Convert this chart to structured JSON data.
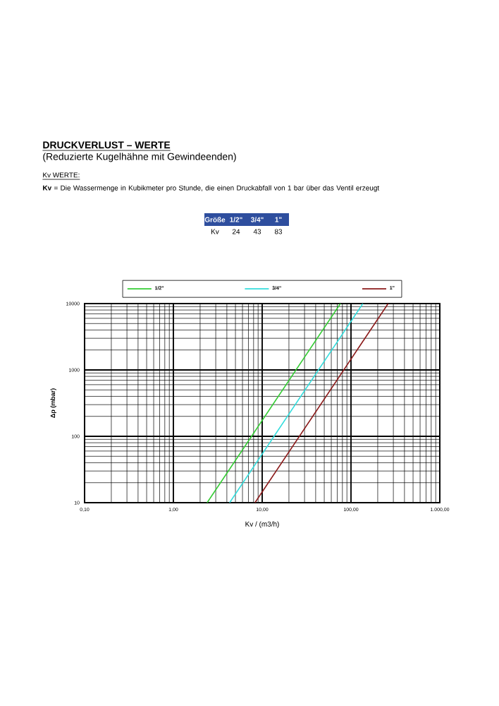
{
  "chart_data": {
    "type": "line",
    "title": "DRUCKVERLUST – WERTE",
    "subtitle": "(Reduzierte Kugelhähne mit Gewindeenden)",
    "annotations": [
      "Kv WERTE:",
      "**Kv** = Die Wassermenge in Kubikmeter pro Stunde, die einen Druckabfall von 1 bar über das Ventil erzeugt",
      "Größe",
      "1/2\"",
      "3/4\"",
      "1\"",
      "Kv",
      "24",
      "43",
      "83"
    ],
    "xlabel": "Kv / (m3/h)",
    "ylabel": "Δp (mbar)",
    "series": [
      {
        "name": "1/2\"",
        "color": "#33cc33",
        "x": [
          2.4,
          76
        ],
        "values": [
          10,
          10000
        ]
      },
      {
        "name": "3/4\"",
        "color": "#33dddd",
        "x": [
          4.3,
          136
        ],
        "values": [
          10,
          10000
        ]
      },
      {
        "name": "1\"",
        "color": "#8b1a1a",
        "x": [
          8.3,
          262
        ],
        "values": [
          10,
          10000
        ]
      }
    ],
    "log": "xy",
    "xlim": [
      0.1,
      1000
    ],
    "ylim": [
      10,
      10000
    ],
    "xticks": [
      {
        "value": 0.1,
        "label": "0,10"
      },
      {
        "value": 1,
        "label": "1,00"
      },
      {
        "value": 10,
        "label": "10,00"
      },
      {
        "value": 100,
        "label": "100,00"
      },
      {
        "value": 1000,
        "label": "1.000,00"
      }
    ],
    "yticks": [
      10,
      100,
      1000,
      10000
    ],
    "grid": true,
    "legend": "top"
  }
}
